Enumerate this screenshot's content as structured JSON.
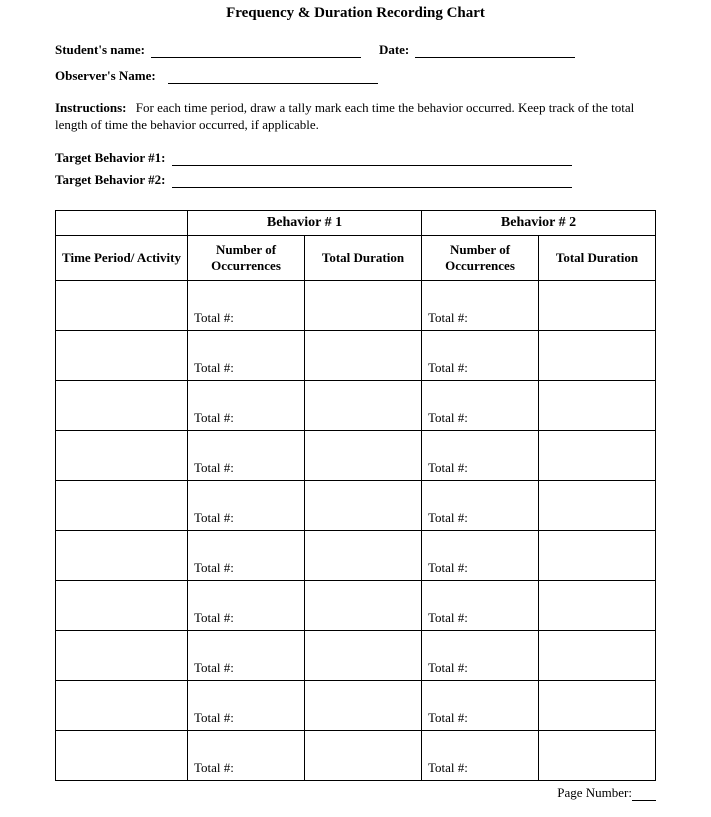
{
  "title": "Frequency & Duration Recording Chart",
  "fields": {
    "student_label": "Student's name:",
    "date_label": "Date:",
    "observer_label": "Observer's Name:"
  },
  "instructions": {
    "heading": "Instructions:",
    "body": "For each time period, draw a tally mark each time the behavior occurred.  Keep track of the total length of time the behavior occurred, if applicable."
  },
  "targets": {
    "t1": "Target Behavior #1:",
    "t2": "Target Behavior #2:"
  },
  "table": {
    "group1": "Behavior # 1",
    "group2": "Behavior # 2",
    "col_time": "Time Period/ Activity",
    "col_occ": "Number of Occurrences",
    "col_dur": "Total Duration",
    "col_occ2": "Number of Occurrences",
    "col_dur2": "Total Duration",
    "row_label": "Total #:",
    "num_rows": 10
  },
  "footer": {
    "page_label": "Page Number:"
  },
  "style": {
    "border_color": "#000000",
    "background": "#ffffff",
    "font": "Times New Roman"
  }
}
